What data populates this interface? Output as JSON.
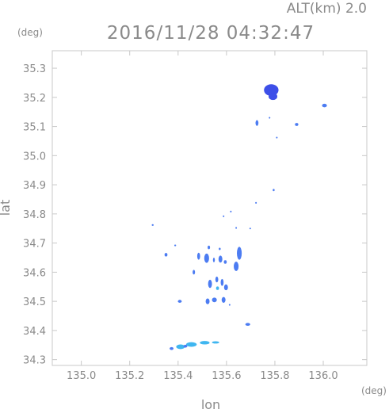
{
  "header": {
    "altitude": "ALT(km) 2.0",
    "timestamp": "2016/11/28 04:32:47"
  },
  "chart_data": {
    "type": "scatter",
    "title": "2016/11/28 04:32:47",
    "subtitle": "ALT(km) 2.0",
    "xlabel": "lon",
    "ylabel": "lat",
    "xunit": "(deg)",
    "yunit": "(deg)",
    "xlim": [
      134.88,
      136.18
    ],
    "ylim": [
      34.28,
      35.36
    ],
    "xticks": [
      135.0,
      135.2,
      135.4,
      135.6,
      135.8,
      136.0
    ],
    "xticklabels": [
      "135.0",
      "135.2",
      "135.4",
      "135.6",
      "135.8",
      "136.0"
    ],
    "yticks": [
      34.3,
      34.4,
      34.5,
      34.6,
      34.7,
      34.8,
      34.9,
      35.0,
      35.1,
      35.2,
      35.3
    ],
    "yticklabels": [
      "34.3",
      "34.4",
      "34.5",
      "34.6",
      "34.7",
      "34.8",
      "34.9",
      "35.0",
      "35.1",
      "35.2",
      "35.3"
    ],
    "grid": false,
    "colors": {
      "low": "#3fb6f0",
      "mid": "#4c7cf2",
      "high": "#3d4fe8",
      "frame": "#c8c8c8",
      "text": "#8a8a8a"
    },
    "echoes": [
      {
        "lon": 135.785,
        "lat": 35.225,
        "rlon": 0.03,
        "rlat": 0.02,
        "level": "high"
      },
      {
        "lon": 135.792,
        "lat": 35.203,
        "rlon": 0.018,
        "rlat": 0.012,
        "level": "high"
      },
      {
        "lon": 136.005,
        "lat": 35.172,
        "rlon": 0.01,
        "rlat": 0.006,
        "level": "mid"
      },
      {
        "lon": 135.726,
        "lat": 35.112,
        "rlon": 0.006,
        "rlat": 0.01,
        "level": "mid"
      },
      {
        "lon": 135.89,
        "lat": 35.107,
        "rlon": 0.007,
        "rlat": 0.005,
        "level": "mid"
      },
      {
        "lon": 135.778,
        "lat": 35.13,
        "rlon": 0.003,
        "rlat": 0.003,
        "level": "mid"
      },
      {
        "lon": 135.808,
        "lat": 35.062,
        "rlon": 0.003,
        "rlat": 0.003,
        "level": "mid"
      },
      {
        "lon": 135.795,
        "lat": 34.882,
        "rlon": 0.004,
        "rlat": 0.004,
        "level": "mid"
      },
      {
        "lon": 135.722,
        "lat": 34.838,
        "rlon": 0.003,
        "rlat": 0.003,
        "level": "mid"
      },
      {
        "lon": 135.618,
        "lat": 34.808,
        "rlon": 0.003,
        "rlat": 0.003,
        "level": "mid"
      },
      {
        "lon": 135.588,
        "lat": 34.792,
        "rlon": 0.003,
        "rlat": 0.003,
        "level": "mid"
      },
      {
        "lon": 135.295,
        "lat": 34.762,
        "rlon": 0.004,
        "rlat": 0.003,
        "level": "mid"
      },
      {
        "lon": 135.64,
        "lat": 34.752,
        "rlon": 0.003,
        "rlat": 0.003,
        "level": "mid"
      },
      {
        "lon": 135.698,
        "lat": 34.75,
        "rlon": 0.002,
        "rlat": 0.002,
        "level": "mid"
      },
      {
        "lon": 135.388,
        "lat": 34.692,
        "rlon": 0.004,
        "rlat": 0.003,
        "level": "mid"
      },
      {
        "lon": 135.527,
        "lat": 34.685,
        "rlon": 0.005,
        "rlat": 0.006,
        "level": "mid"
      },
      {
        "lon": 135.572,
        "lat": 34.68,
        "rlon": 0.004,
        "rlat": 0.004,
        "level": "mid"
      },
      {
        "lon": 135.653,
        "lat": 34.665,
        "rlon": 0.01,
        "rlat": 0.022,
        "level": "mid"
      },
      {
        "lon": 135.64,
        "lat": 34.62,
        "rlon": 0.01,
        "rlat": 0.016,
        "level": "mid"
      },
      {
        "lon": 135.35,
        "lat": 34.66,
        "rlon": 0.006,
        "rlat": 0.006,
        "level": "mid"
      },
      {
        "lon": 135.485,
        "lat": 34.655,
        "rlon": 0.006,
        "rlat": 0.012,
        "level": "mid"
      },
      {
        "lon": 135.518,
        "lat": 34.648,
        "rlon": 0.01,
        "rlat": 0.016,
        "level": "mid"
      },
      {
        "lon": 135.548,
        "lat": 34.642,
        "rlon": 0.004,
        "rlat": 0.008,
        "level": "mid"
      },
      {
        "lon": 135.575,
        "lat": 34.645,
        "rlon": 0.008,
        "rlat": 0.012,
        "level": "mid"
      },
      {
        "lon": 135.595,
        "lat": 34.635,
        "rlon": 0.006,
        "rlat": 0.006,
        "level": "mid"
      },
      {
        "lon": 135.465,
        "lat": 34.6,
        "rlon": 0.005,
        "rlat": 0.008,
        "level": "mid"
      },
      {
        "lon": 135.532,
        "lat": 34.56,
        "rlon": 0.008,
        "rlat": 0.014,
        "level": "mid"
      },
      {
        "lon": 135.56,
        "lat": 34.575,
        "rlon": 0.006,
        "rlat": 0.01,
        "level": "mid"
      },
      {
        "lon": 135.582,
        "lat": 34.565,
        "rlon": 0.006,
        "rlat": 0.012,
        "level": "mid"
      },
      {
        "lon": 135.598,
        "lat": 34.548,
        "rlon": 0.008,
        "rlat": 0.01,
        "level": "mid"
      },
      {
        "lon": 135.563,
        "lat": 34.545,
        "rlon": 0.006,
        "rlat": 0.006,
        "level": "low"
      },
      {
        "lon": 135.522,
        "lat": 34.5,
        "rlon": 0.008,
        "rlat": 0.01,
        "level": "mid"
      },
      {
        "lon": 135.55,
        "lat": 34.505,
        "rlon": 0.01,
        "rlat": 0.008,
        "level": "mid"
      },
      {
        "lon": 135.588,
        "lat": 34.505,
        "rlon": 0.008,
        "rlat": 0.01,
        "level": "mid"
      },
      {
        "lon": 135.613,
        "lat": 34.488,
        "rlon": 0.003,
        "rlat": 0.003,
        "level": "mid"
      },
      {
        "lon": 135.407,
        "lat": 34.5,
        "rlon": 0.008,
        "rlat": 0.005,
        "level": "mid"
      },
      {
        "lon": 135.688,
        "lat": 34.421,
        "rlon": 0.01,
        "rlat": 0.005,
        "level": "mid"
      },
      {
        "lon": 135.41,
        "lat": 34.344,
        "rlon": 0.018,
        "rlat": 0.008,
        "level": "low"
      },
      {
        "lon": 135.455,
        "lat": 34.352,
        "rlon": 0.022,
        "rlat": 0.008,
        "level": "low"
      },
      {
        "lon": 135.51,
        "lat": 34.358,
        "rlon": 0.02,
        "rlat": 0.006,
        "level": "low"
      },
      {
        "lon": 135.555,
        "lat": 34.359,
        "rlon": 0.015,
        "rlat": 0.004,
        "level": "low"
      },
      {
        "lon": 135.373,
        "lat": 34.338,
        "rlon": 0.008,
        "rlat": 0.005,
        "level": "mid"
      },
      {
        "lon": 135.43,
        "lat": 34.346,
        "rlon": 0.008,
        "rlat": 0.005,
        "level": "mid"
      }
    ]
  }
}
